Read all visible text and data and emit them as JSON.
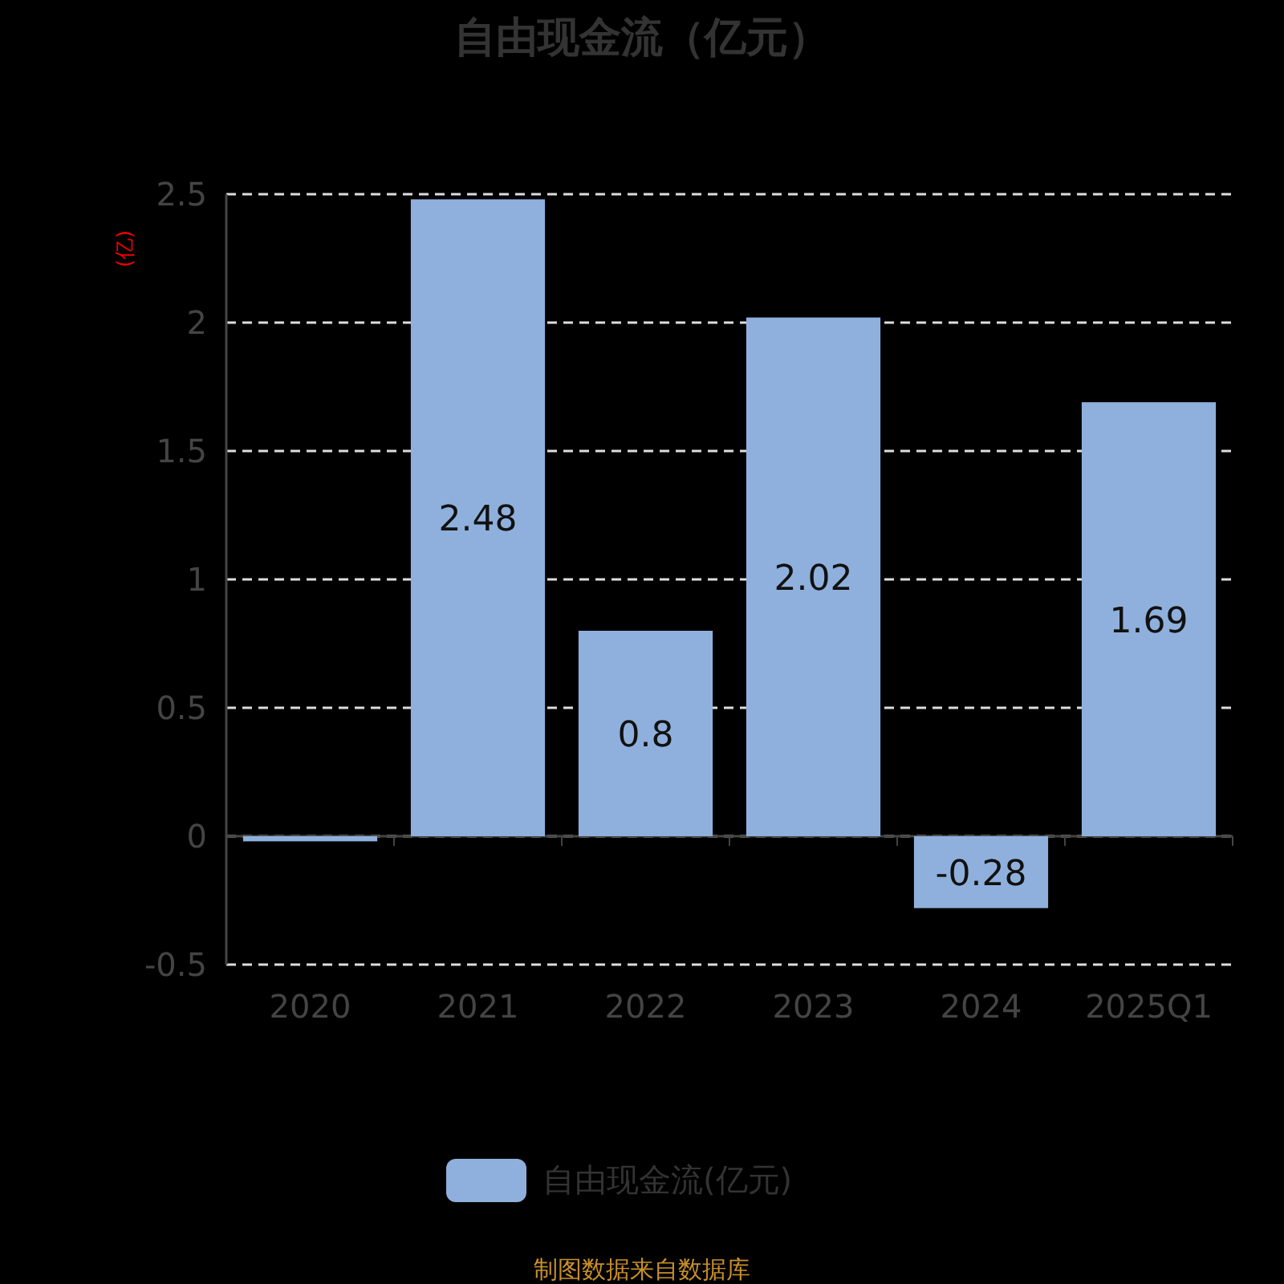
{
  "chart_data": {
    "type": "bar",
    "title": "自由现金流（亿元）",
    "ylabel": "(亿)",
    "categories": [
      "2020",
      "2021",
      "2022",
      "2023",
      "2024",
      "2025Q1"
    ],
    "series": [
      {
        "name": "自由现金流(亿元)",
        "color": "#8fb0dc",
        "values": [
          -0.02,
          2.48,
          0.8,
          2.02,
          -0.28,
          1.69
        ],
        "value_labels": [
          null,
          "2.48",
          "0.8",
          "2.02",
          "-0.28",
          "1.69"
        ]
      }
    ],
    "ylim": [
      -0.5,
      2.5
    ],
    "yticks": [
      -0.5,
      0,
      0.5,
      1,
      1.5,
      2,
      2.5
    ],
    "grid": "y",
    "legend": "bottom",
    "annotations": [
      "制图数据来自数据库"
    ]
  }
}
